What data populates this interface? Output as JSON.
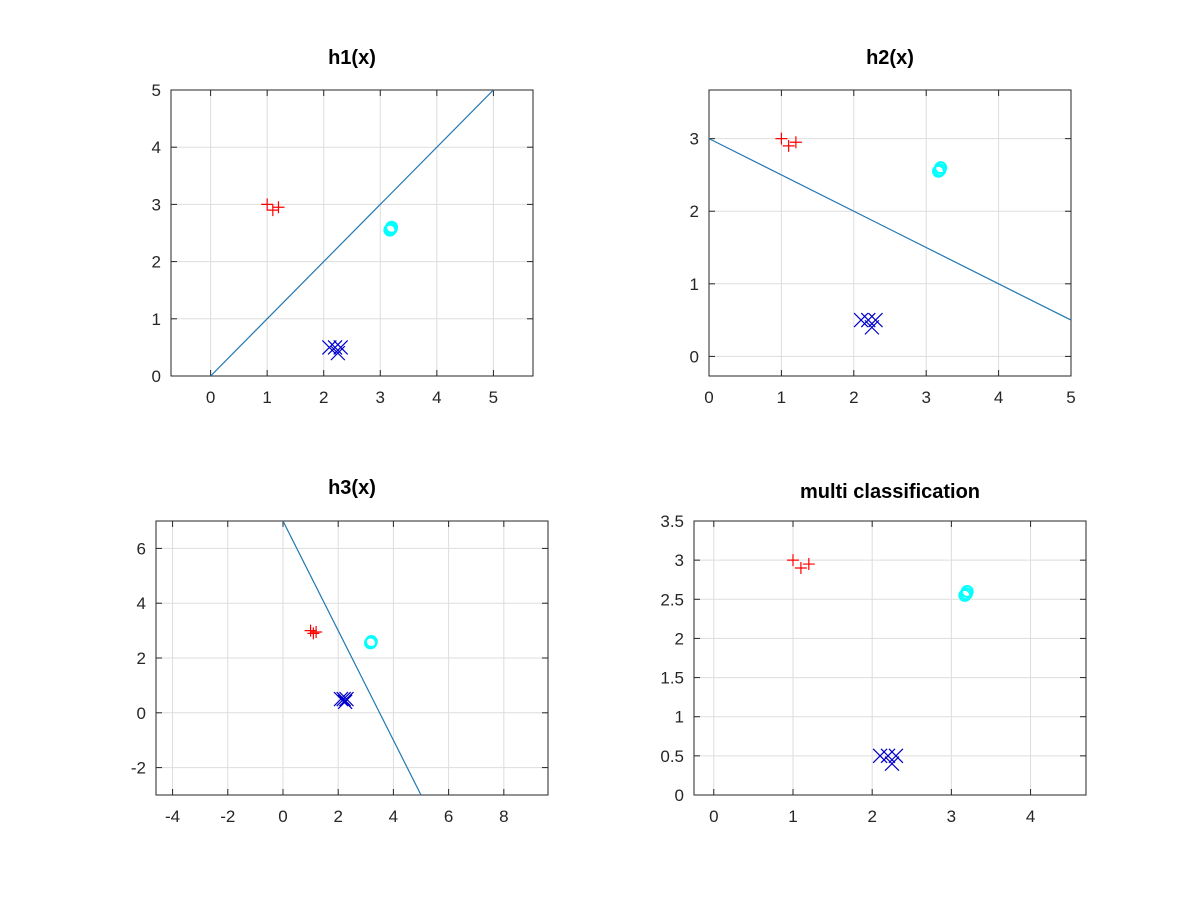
{
  "figure": {
    "background": "#ffffff"
  },
  "styles": {
    "grid_color": "#dddddd",
    "axis_color": "#262626",
    "line_color": "#2177b2",
    "class_colors": {
      "plus": "#ff0000",
      "circle": "#00ffff",
      "x": "#0000cc"
    }
  },
  "chart_data": [
    {
      "type": "scatter",
      "title": "h1(x)",
      "xlim": [
        -0.7,
        5.7
      ],
      "ylim": [
        0,
        5
      ],
      "xticks": [
        0,
        1,
        2,
        3,
        4,
        5
      ],
      "yticks": [
        0,
        1,
        2,
        3,
        4,
        5
      ],
      "xtick_labels": [
        "0",
        "1",
        "2",
        "3",
        "4",
        "5"
      ],
      "ytick_labels": [
        "0",
        "1",
        "2",
        "3",
        "4",
        "5"
      ],
      "grid": true,
      "series": [
        {
          "name": "class plus",
          "marker": "plus",
          "color": "red",
          "x": [
            1.0,
            1.1,
            1.2
          ],
          "y": [
            3.0,
            2.9,
            2.95
          ]
        },
        {
          "name": "class circle",
          "marker": "circle",
          "color": "cyan",
          "x": [
            3.17,
            3.2,
            3.19
          ],
          "y": [
            2.55,
            2.6,
            2.57
          ]
        },
        {
          "name": "class x",
          "marker": "x",
          "color": "blue",
          "x": [
            2.1,
            2.2,
            2.25,
            2.3
          ],
          "y": [
            0.5,
            0.5,
            0.4,
            0.5
          ]
        }
      ],
      "decision_line": {
        "x": [
          0,
          5
        ],
        "y": [
          0,
          5
        ]
      }
    },
    {
      "type": "scatter",
      "title": "h2(x)",
      "xlim": [
        0,
        5
      ],
      "ylim": [
        -0.27,
        3.67
      ],
      "xticks": [
        0,
        1,
        2,
        3,
        4,
        5
      ],
      "yticks": [
        0,
        1,
        2,
        3
      ],
      "xtick_labels": [
        "0",
        "1",
        "2",
        "3",
        "4",
        "5"
      ],
      "ytick_labels": [
        "0",
        "1",
        "2",
        "3"
      ],
      "grid": true,
      "series": [
        {
          "name": "class plus",
          "marker": "plus",
          "color": "red",
          "x": [
            1.0,
            1.1,
            1.2
          ],
          "y": [
            3.0,
            2.9,
            2.95
          ]
        },
        {
          "name": "class circle",
          "marker": "circle",
          "color": "cyan",
          "x": [
            3.17,
            3.2,
            3.19
          ],
          "y": [
            2.55,
            2.6,
            2.57
          ]
        },
        {
          "name": "class x",
          "marker": "x",
          "color": "blue",
          "x": [
            2.1,
            2.2,
            2.25,
            2.3
          ],
          "y": [
            0.5,
            0.5,
            0.4,
            0.5
          ]
        }
      ],
      "decision_line": {
        "x": [
          0,
          5
        ],
        "y": [
          3,
          0.5
        ]
      }
    },
    {
      "type": "scatter",
      "title": "h3(x)",
      "xlim": [
        -4.6,
        9.6
      ],
      "ylim": [
        -3,
        7
      ],
      "xticks": [
        -4,
        -2,
        0,
        2,
        4,
        6,
        8
      ],
      "yticks": [
        -2,
        0,
        2,
        4,
        6
      ],
      "xtick_labels": [
        "-4",
        "-2",
        "0",
        "2",
        "4",
        "6",
        "8"
      ],
      "ytick_labels": [
        "-2",
        "0",
        "2",
        "4",
        "6"
      ],
      "grid": true,
      "series": [
        {
          "name": "class plus",
          "marker": "plus",
          "color": "red",
          "x": [
            1.0,
            1.1,
            1.2
          ],
          "y": [
            3.0,
            2.9,
            2.95
          ]
        },
        {
          "name": "class circle",
          "marker": "circle",
          "color": "cyan",
          "x": [
            3.17,
            3.2,
            3.19
          ],
          "y": [
            2.55,
            2.6,
            2.57
          ]
        },
        {
          "name": "class x",
          "marker": "x",
          "color": "blue",
          "x": [
            2.1,
            2.2,
            2.25,
            2.3
          ],
          "y": [
            0.5,
            0.5,
            0.4,
            0.5
          ]
        }
      ],
      "decision_line": {
        "x": [
          0,
          5
        ],
        "y": [
          7,
          -3
        ]
      }
    },
    {
      "type": "scatter",
      "title": "multi classification",
      "xlim": [
        -0.25,
        4.7
      ],
      "ylim": [
        0,
        3.5
      ],
      "xticks": [
        0,
        1,
        2,
        3,
        4
      ],
      "yticks": [
        0,
        0.5,
        1,
        1.5,
        2,
        2.5,
        3,
        3.5
      ],
      "xtick_labels": [
        "0",
        "1",
        "2",
        "3",
        "4"
      ],
      "ytick_labels": [
        "0",
        "0.5",
        "1",
        "1.5",
        "2",
        "2.5",
        "3",
        "3.5"
      ],
      "grid": true,
      "series": [
        {
          "name": "class plus",
          "marker": "plus",
          "color": "red",
          "x": [
            1.0,
            1.1,
            1.2
          ],
          "y": [
            3.0,
            2.9,
            2.95
          ]
        },
        {
          "name": "class circle",
          "marker": "circle",
          "color": "cyan",
          "x": [
            3.17,
            3.2,
            3.19
          ],
          "y": [
            2.55,
            2.6,
            2.57
          ]
        },
        {
          "name": "class x",
          "marker": "x",
          "color": "blue",
          "x": [
            2.1,
            2.2,
            2.25,
            2.3
          ],
          "y": [
            0.5,
            0.5,
            0.4,
            0.5
          ]
        }
      ]
    }
  ]
}
